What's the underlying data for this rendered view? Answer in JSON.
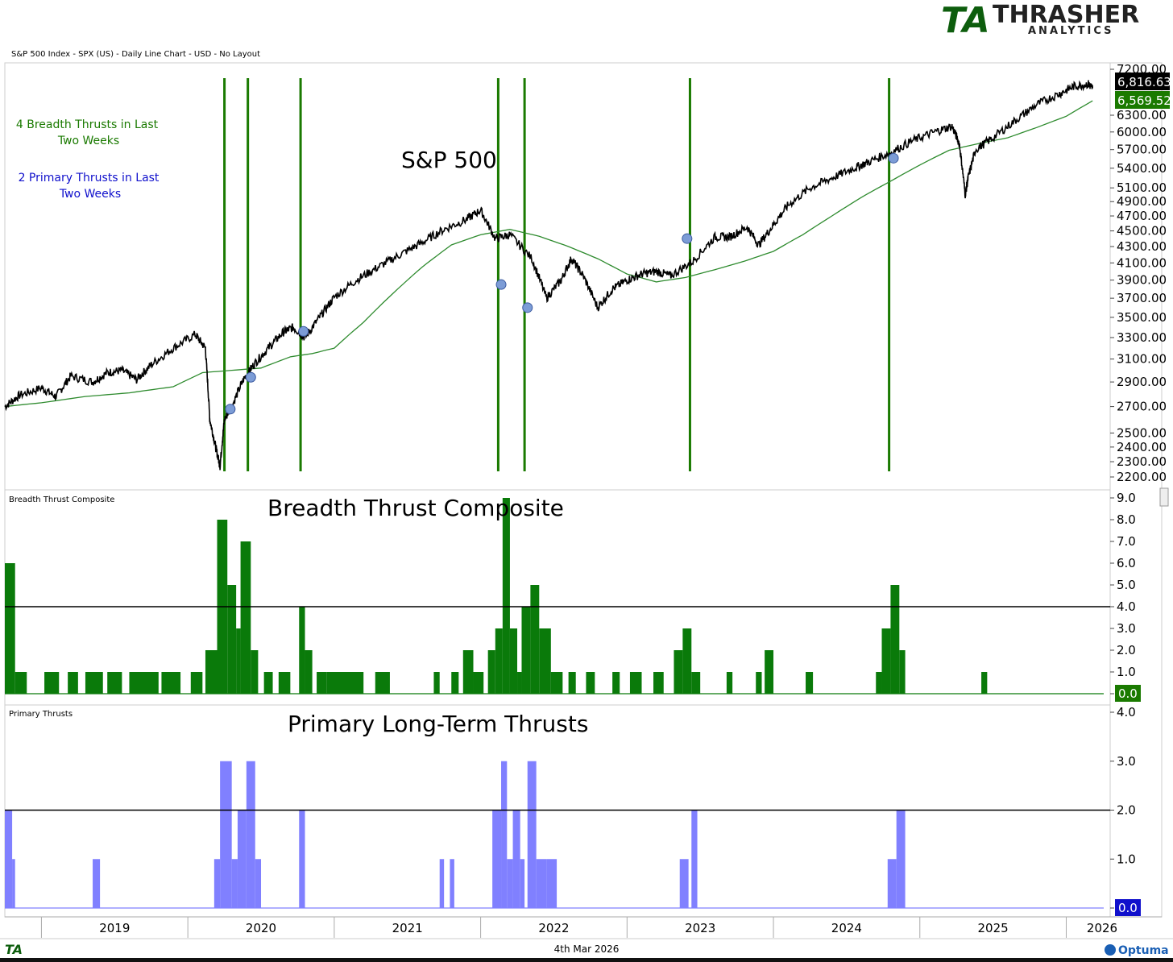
{
  "header": {
    "chart_info": "S&P 500 Index - SPX (US) - Daily Line Chart - USD - No Layout",
    "brand_mark": "TA",
    "brand_name": "THRASHER",
    "brand_sub": "ANALYTICS"
  },
  "notes": {
    "line1": "4 Breadth Thrusts in Last",
    "line2": "Two Weeks",
    "line3": "2 Primary Thrusts in Last",
    "line4": "Two Weeks"
  },
  "footer": {
    "date": "4th Mar 2026",
    "left_logo": "TA",
    "right_logo": "Optuma"
  },
  "colors": {
    "price": "#000000",
    "ma": "#2e8b2e",
    "thrust_line": "#1a7a00",
    "breadth_fill": "#0a7a0a",
    "primary_fill": "#8080ff",
    "marker": "#7c9cd6",
    "last_price_bg": "#000000",
    "ma_label_bg": "#1a7a00",
    "primary_last_bg": "#1010cc"
  },
  "chart_data": [
    {
      "type": "line",
      "title": "S&P 500",
      "scale": "log",
      "ylim": [
        2200,
        7200
      ],
      "yticks": [
        2200,
        2300,
        2400,
        2500,
        2700,
        2900,
        3100,
        3300,
        3500,
        3700,
        3900,
        4100,
        4300,
        4500,
        4700,
        4900,
        5100,
        5400,
        5700,
        6000,
        6300,
        7200
      ],
      "ytick_labels": [
        "2200.00",
        "2300.00",
        "2400.00",
        "2500.00",
        "2700.00",
        "2900.00",
        "3100.00",
        "3300.00",
        "3500.00",
        "3700.00",
        "3900.00",
        "4100.00",
        "4300.00",
        "4500.00",
        "4700.00",
        "4900.00",
        "5100.00",
        "5400.00",
        "5700.00",
        "6000.00",
        "6300.00",
        "7200.00"
      ],
      "last_value_label": "6,816.63",
      "ma_value_label": "6,569.52",
      "series": [
        {
          "x": [
            2018.75,
            2018.85,
            2019.0,
            2019.1,
            2019.2,
            2019.35,
            2019.45,
            2019.55,
            2019.65,
            2019.75,
            2019.9,
            2020.05,
            2020.12,
            2020.15,
            2020.19,
            2020.22,
            2020.25,
            2020.3,
            2020.38,
            2020.45,
            2020.55,
            2020.65,
            2020.72,
            2020.8,
            2020.9,
            2021.0,
            2021.15,
            2021.3,
            2021.45,
            2021.6,
            2021.75,
            2021.9,
            2022.0,
            2022.1,
            2022.2,
            2022.35,
            2022.45,
            2022.55,
            2022.62,
            2022.7,
            2022.8,
            2022.9,
            2023.0,
            2023.1,
            2023.2,
            2023.3,
            2023.45,
            2023.6,
            2023.7,
            2023.82,
            2023.9,
            2024.0,
            2024.1,
            2024.25,
            2024.4,
            2024.55,
            2024.65,
            2024.8,
            2024.95,
            2025.1,
            2025.22,
            2025.27,
            2025.31,
            2025.33,
            2025.38,
            2025.5,
            2025.65,
            2025.8,
            2025.95,
            2026.05,
            2026.15,
            2026.18
          ],
          "values": [
            2700,
            2790,
            2850,
            2780,
            2950,
            2900,
            2980,
            3000,
            2920,
            3050,
            3200,
            3330,
            3200,
            2600,
            2400,
            2270,
            2600,
            2700,
            2920,
            3050,
            3200,
            3350,
            3400,
            3300,
            3500,
            3710,
            3900,
            4050,
            4200,
            4350,
            4520,
            4650,
            4780,
            4400,
            4450,
            4150,
            3700,
            3900,
            4150,
            3950,
            3600,
            3800,
            3900,
            3970,
            4000,
            3950,
            4120,
            4420,
            4420,
            4550,
            4320,
            4580,
            4850,
            5100,
            5250,
            5400,
            5500,
            5650,
            5850,
            6000,
            6100,
            5800,
            5000,
            5250,
            5700,
            5900,
            6200,
            6500,
            6700,
            6850,
            6900,
            6816
          ]
        },
        {
          "x": [
            2018.75,
            2019.0,
            2019.3,
            2019.6,
            2019.9,
            2020.1,
            2020.3,
            2020.5,
            2020.7,
            2020.85,
            2021.0,
            2021.2,
            2021.4,
            2021.6,
            2021.8,
            2022.0,
            2022.2,
            2022.4,
            2022.6,
            2022.8,
            2023.0,
            2023.2,
            2023.4,
            2023.6,
            2023.8,
            2024.0,
            2024.2,
            2024.4,
            2024.6,
            2024.8,
            2025.0,
            2025.2,
            2025.4,
            2025.6,
            2025.8,
            2026.0,
            2026.18
          ],
          "values": [
            2700,
            2730,
            2780,
            2810,
            2860,
            2980,
            3000,
            3020,
            3120,
            3150,
            3200,
            3450,
            3750,
            4050,
            4320,
            4450,
            4520,
            4430,
            4300,
            4150,
            3970,
            3880,
            3930,
            4020,
            4120,
            4240,
            4450,
            4700,
            4960,
            5200,
            5450,
            5690,
            5800,
            5900,
            6080,
            6280,
            6569
          ]
        }
      ],
      "thrust_lines_x": [
        2020.25,
        2020.41,
        2020.77,
        2022.12,
        2022.3,
        2023.43,
        2024.79
      ],
      "markers": [
        {
          "x": 2020.29,
          "y": 2680
        },
        {
          "x": 2020.43,
          "y": 2940
        },
        {
          "x": 2020.79,
          "y": 3360
        },
        {
          "x": 2022.14,
          "y": 3850
        },
        {
          "x": 2022.32,
          "y": 3600
        },
        {
          "x": 2023.41,
          "y": 4400
        },
        {
          "x": 2024.82,
          "y": 5560
        }
      ]
    },
    {
      "type": "area",
      "title": "Breadth Thrust Composite",
      "label": "Breadth Thrust Composite",
      "ylim": [
        0,
        9
      ],
      "yticks": [
        0,
        1,
        2,
        3,
        4,
        5,
        6,
        7,
        8,
        9
      ],
      "ytick_labels": [
        "0.0",
        "1.0",
        "2.0",
        "3.0",
        "4.0",
        "5.0",
        "6.0",
        "7.0",
        "8.0",
        "9.0"
      ],
      "threshold": 4,
      "last_value_label": "0.0",
      "segments": [
        [
          2018.75,
          2018.82,
          6
        ],
        [
          2018.82,
          2018.9,
          1
        ],
        [
          2018.9,
          2019.02,
          0
        ],
        [
          2019.02,
          2019.12,
          1
        ],
        [
          2019.18,
          2019.25,
          1
        ],
        [
          2019.3,
          2019.42,
          1
        ],
        [
          2019.45,
          2019.55,
          1
        ],
        [
          2019.6,
          2019.8,
          1
        ],
        [
          2019.82,
          2019.95,
          1
        ],
        [
          2020.02,
          2020.1,
          1
        ],
        [
          2020.12,
          2020.2,
          2
        ],
        [
          2020.2,
          2020.27,
          8
        ],
        [
          2020.27,
          2020.33,
          5
        ],
        [
          2020.33,
          2020.36,
          3
        ],
        [
          2020.36,
          2020.43,
          7
        ],
        [
          2020.43,
          2020.48,
          2
        ],
        [
          2020.52,
          2020.58,
          1
        ],
        [
          2020.62,
          2020.7,
          1
        ],
        [
          2020.76,
          2020.8,
          4
        ],
        [
          2020.8,
          2020.85,
          2
        ],
        [
          2020.88,
          2020.95,
          1
        ],
        [
          2020.95,
          2021.2,
          1
        ],
        [
          2021.28,
          2021.38,
          1
        ],
        [
          2021.68,
          2021.72,
          1
        ],
        [
          2021.8,
          2021.85,
          1
        ],
        [
          2021.88,
          2021.95,
          2
        ],
        [
          2021.95,
          2022.02,
          1
        ],
        [
          2022.05,
          2022.1,
          2
        ],
        [
          2022.1,
          2022.15,
          3
        ],
        [
          2022.15,
          2022.2,
          9
        ],
        [
          2022.2,
          2022.25,
          3
        ],
        [
          2022.25,
          2022.28,
          1
        ],
        [
          2022.28,
          2022.34,
          4
        ],
        [
          2022.34,
          2022.4,
          5
        ],
        [
          2022.4,
          2022.48,
          3
        ],
        [
          2022.48,
          2022.56,
          1
        ],
        [
          2022.6,
          2022.65,
          1
        ],
        [
          2022.72,
          2022.78,
          1
        ],
        [
          2022.9,
          2022.95,
          1
        ],
        [
          2023.02,
          2023.1,
          1
        ],
        [
          2023.18,
          2023.25,
          1
        ],
        [
          2023.32,
          2023.38,
          2
        ],
        [
          2023.38,
          2023.44,
          3
        ],
        [
          2023.44,
          2023.5,
          1
        ],
        [
          2023.68,
          2023.72,
          1
        ],
        [
          2023.88,
          2023.92,
          1
        ],
        [
          2023.94,
          2024.0,
          2
        ],
        [
          2024.22,
          2024.27,
          1
        ],
        [
          2024.7,
          2024.74,
          1
        ],
        [
          2024.74,
          2024.8,
          3
        ],
        [
          2024.8,
          2024.86,
          5
        ],
        [
          2024.86,
          2024.9,
          2
        ],
        [
          2025.42,
          2025.46,
          1
        ]
      ]
    },
    {
      "type": "area",
      "title": "Primary Long-Term Thrusts",
      "label": "Primary Thrusts",
      "ylim": [
        0,
        4
      ],
      "yticks": [
        0,
        1,
        2,
        3,
        4
      ],
      "ytick_labels": [
        "0.0",
        "1.0",
        "2.0",
        "3.0",
        "4.0"
      ],
      "threshold": 2,
      "last_value_label": "0.0",
      "segments": [
        [
          2018.75,
          2018.8,
          2
        ],
        [
          2018.8,
          2018.82,
          1
        ],
        [
          2019.35,
          2019.4,
          1
        ],
        [
          2020.18,
          2020.22,
          1
        ],
        [
          2020.22,
          2020.3,
          3
        ],
        [
          2020.3,
          2020.34,
          1
        ],
        [
          2020.34,
          2020.4,
          2
        ],
        [
          2020.4,
          2020.46,
          3
        ],
        [
          2020.46,
          2020.5,
          1
        ],
        [
          2020.76,
          2020.8,
          2
        ],
        [
          2021.72,
          2021.75,
          1
        ],
        [
          2021.79,
          2021.82,
          1
        ],
        [
          2022.08,
          2022.14,
          2
        ],
        [
          2022.14,
          2022.18,
          3
        ],
        [
          2022.18,
          2022.22,
          1
        ],
        [
          2022.22,
          2022.27,
          2
        ],
        [
          2022.27,
          2022.3,
          1
        ],
        [
          2022.32,
          2022.38,
          3
        ],
        [
          2022.38,
          2022.45,
          1
        ],
        [
          2022.45,
          2022.52,
          1
        ],
        [
          2023.36,
          2023.42,
          1
        ],
        [
          2023.44,
          2023.48,
          2
        ],
        [
          2024.78,
          2024.84,
          1
        ],
        [
          2024.84,
          2024.9,
          2
        ]
      ]
    }
  ],
  "x_axis": {
    "labels": [
      "2019",
      "2020",
      "2021",
      "2022",
      "2023",
      "2024",
      "2025",
      "2026"
    ],
    "xlim": [
      2018.75,
      2026.3
    ]
  }
}
